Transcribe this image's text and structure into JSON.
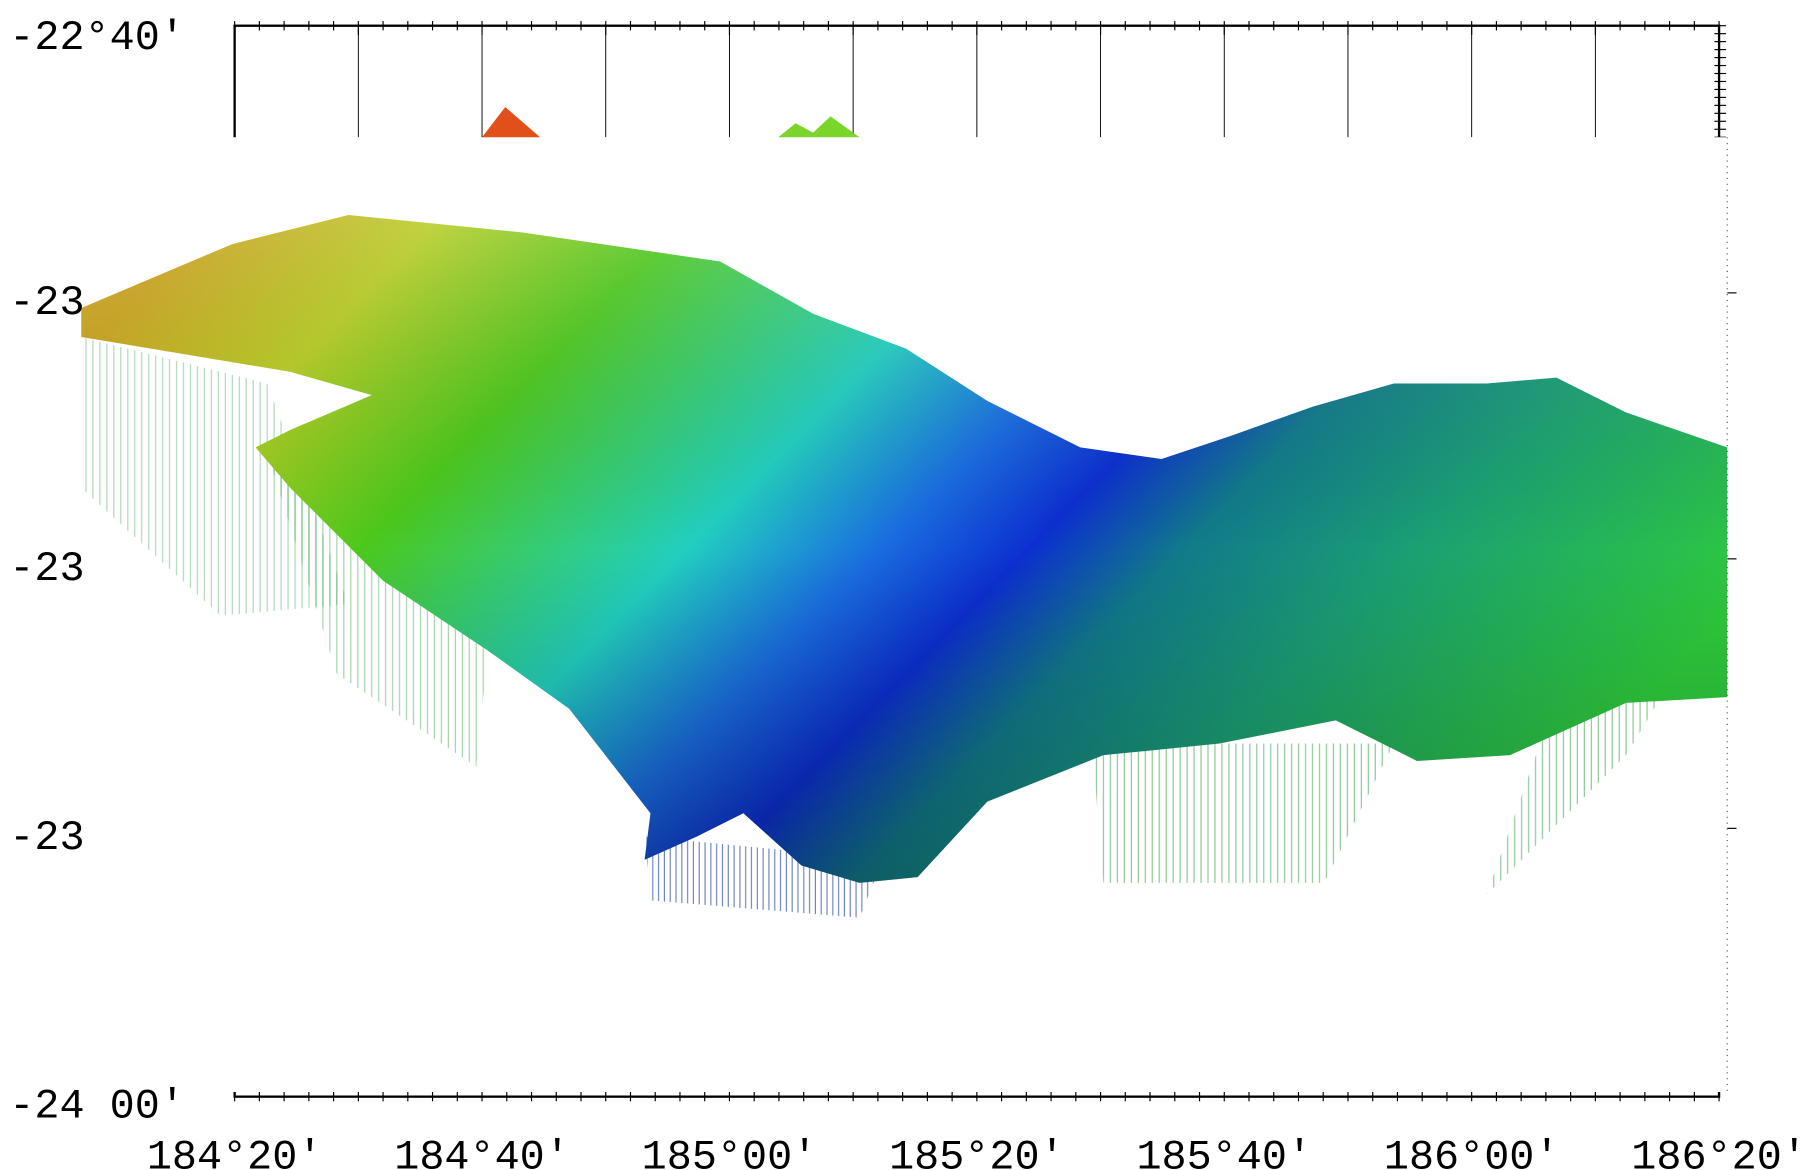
{
  "map": {
    "y_labels": [
      "-22°40'",
      "-23",
      "-23",
      "-23",
      "-24 00'"
    ],
    "x_labels": [
      "184°20'",
      "184°40'",
      "185°00'",
      "185°20'",
      "185°40'",
      "186°00'",
      "186°20'"
    ]
  }
}
